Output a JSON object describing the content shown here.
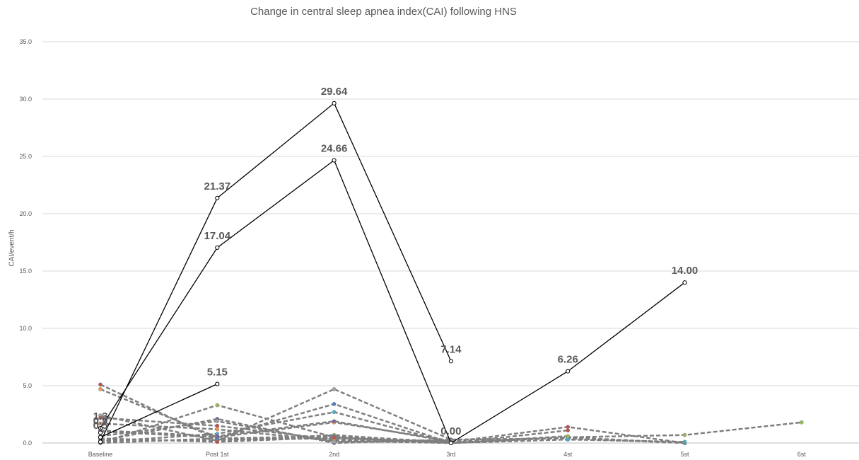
{
  "chart_data": {
    "type": "line",
    "title": "Change in central sleep apnea index(CAI) following HNS",
    "xlabel": "",
    "ylabel": "CAI/event/h",
    "categories": [
      "Baseline",
      "Post 1st",
      "2nd",
      "3rd",
      "4st",
      "5st",
      "6st"
    ],
    "ylim": [
      0,
      35
    ],
    "yticks": [
      "0.0",
      "5.0",
      "10.0",
      "15.0",
      "20.0",
      "25.0",
      "30.0",
      "35.0"
    ],
    "grid": true,
    "legend": "none",
    "highlighted_series": [
      {
        "values": [
          0.1,
          21.37,
          29.64,
          7.14,
          null,
          null,
          null
        ],
        "labels": [
          null,
          "21.37",
          "29.64",
          "7.14",
          null,
          null,
          null
        ]
      },
      {
        "values": [
          1.3,
          17.04,
          24.66,
          0.0,
          6.26,
          14.0,
          null
        ],
        "labels": [
          "1.3",
          "17.04",
          "24.66",
          "0.00",
          "6.26",
          "14.00",
          null
        ]
      },
      {
        "values": [
          0.5,
          5.15,
          null,
          null,
          null,
          null,
          null
        ],
        "labels": [
          "0.5",
          "5.15",
          null,
          null,
          null,
          null,
          null
        ]
      },
      {
        "values": [
          0.9,
          null,
          null,
          null,
          null,
          null,
          null
        ],
        "labels": [
          "0.9",
          null,
          null,
          null,
          null,
          null,
          null
        ]
      }
    ],
    "background_series": [
      {
        "color": "#c0504d",
        "values": [
          5.1,
          0.3,
          0.4,
          0.1,
          1.4,
          0.0,
          null
        ]
      },
      {
        "color": "#f79646",
        "values": [
          4.7,
          0.5,
          1.8,
          0.2,
          null,
          null,
          null
        ]
      },
      {
        "color": "#9bbb59",
        "values": [
          0.0,
          3.3,
          0.5,
          0.0,
          0.5,
          0.7,
          1.8
        ]
      },
      {
        "color": "#a5a5a5",
        "values": [
          2.4,
          0.2,
          4.7,
          0.3,
          0.4,
          0.0,
          null
        ]
      },
      {
        "color": "#4f81bd",
        "values": [
          1.0,
          0.5,
          3.4,
          0.0,
          0.5,
          0.0,
          null
        ]
      },
      {
        "color": "#c0504d",
        "values": [
          2.2,
          1.5,
          0.3,
          0.0,
          1.1,
          null,
          null
        ]
      },
      {
        "color": "#8064a2",
        "values": [
          0.2,
          2.1,
          0.0,
          0.3,
          null,
          null,
          null
        ]
      },
      {
        "color": "#4bacc6",
        "values": [
          0.1,
          0.8,
          2.7,
          0.0,
          0.3,
          0.1,
          null
        ]
      },
      {
        "color": "#f79646",
        "values": [
          1.7,
          1.2,
          0.2,
          0.0,
          null,
          null,
          null
        ]
      },
      {
        "color": "#9bbb59",
        "values": [
          0.3,
          0.2,
          0.7,
          0.0,
          0.6,
          null,
          null
        ]
      },
      {
        "color": "#4f81bd",
        "values": [
          0.0,
          0.4,
          0.6,
          0.1,
          null,
          null,
          null
        ]
      },
      {
        "color": "#a5a5a5",
        "values": [
          0.6,
          1.9,
          0.1,
          0.2,
          null,
          null,
          null
        ]
      },
      {
        "color": "#c0504d",
        "values": [
          0.4,
          0.1,
          0.5,
          0.0,
          null,
          null,
          null
        ]
      },
      {
        "color": "#8064a2",
        "values": [
          1.1,
          0.6,
          1.9,
          0.1,
          null,
          null,
          null
        ]
      }
    ]
  }
}
